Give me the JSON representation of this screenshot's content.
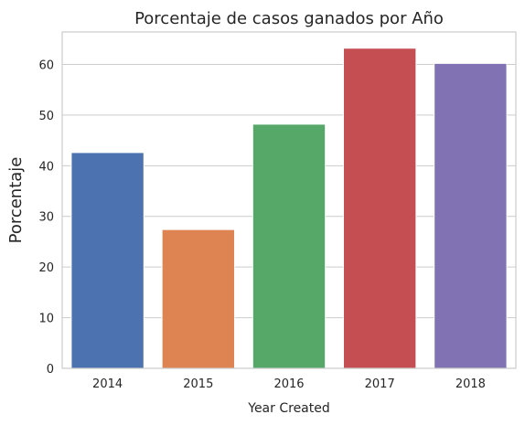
{
  "chart_data": {
    "type": "bar",
    "title": "Porcentaje de casos ganados por Año",
    "xlabel": "Year Created",
    "ylabel": "Porcentaje",
    "categories": [
      "2014",
      "2015",
      "2016",
      "2017",
      "2018"
    ],
    "values": [
      42.6,
      27.4,
      48.2,
      63.2,
      60.2
    ],
    "colors": [
      "#4c72b0",
      "#dd8452",
      "#55a868",
      "#c44e52",
      "#8172b3"
    ],
    "ylim": [
      0,
      66.4
    ],
    "yticks": [
      0,
      10,
      20,
      30,
      40,
      50,
      60
    ],
    "grid": "horizontal",
    "legend": "none"
  }
}
